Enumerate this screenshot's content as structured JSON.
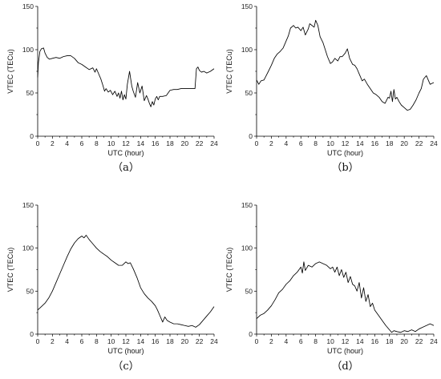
{
  "chart_data": [
    {
      "panel_label": "（a）",
      "type": "line",
      "xlabel": "UTC (hour)",
      "ylabel": "VTEC (TECu)",
      "xlim": [
        0,
        24
      ],
      "ylim": [
        0,
        150
      ],
      "x_ticks": [
        0,
        2,
        4,
        6,
        8,
        10,
        12,
        14,
        16,
        18,
        20,
        22,
        24
      ],
      "y_ticks": [
        0,
        50,
        100,
        150
      ],
      "series": [
        {
          "x": [
            0,
            0.1,
            0.3,
            0.5,
            0.8,
            1.0,
            1.3,
            1.6,
            2.0,
            2.5,
            3.0,
            3.5,
            4.0,
            4.5,
            5.0,
            5.5,
            6.0,
            6.5,
            7.0,
            7.5,
            7.8,
            8.0,
            8.3,
            8.6,
            8.9,
            9.1,
            9.3,
            9.6,
            9.9,
            10.2,
            10.5,
            10.8,
            11.0,
            11.2,
            11.4,
            11.6,
            11.8,
            12.0,
            12.2,
            12.5,
            12.8,
            13.0,
            13.3,
            13.6,
            13.9,
            14.2,
            14.5,
            14.8,
            15.0,
            15.2,
            15.4,
            15.6,
            15.8,
            16.0,
            16.2,
            16.4,
            16.6,
            17.0,
            17.5,
            18.0,
            18.5,
            19.0,
            19.5,
            20.0,
            20.5,
            21.0,
            21.4,
            21.6,
            21.8,
            22.0,
            22.3,
            22.6,
            23.0,
            23.5,
            24.0
          ],
          "y": [
            68,
            85,
            98,
            101,
            102,
            96,
            91,
            89,
            90,
            91,
            90,
            92,
            93,
            93,
            90,
            85,
            83,
            80,
            77,
            79,
            74,
            78,
            72,
            66,
            58,
            52,
            55,
            51,
            53,
            48,
            52,
            46,
            50,
            44,
            52,
            42,
            48,
            43,
            60,
            75,
            58,
            52,
            45,
            62,
            50,
            58,
            41,
            47,
            43,
            38,
            34,
            40,
            36,
            43,
            46,
            42,
            46,
            46,
            47,
            53,
            54,
            54,
            55,
            55,
            55,
            55,
            55,
            78,
            80,
            76,
            74,
            75,
            73,
            75,
            78
          ]
        }
      ]
    },
    {
      "panel_label": "（b）",
      "type": "line",
      "xlabel": "UTC (hour)",
      "ylabel": "VTEC (TECu)",
      "xlim": [
        0,
        24
      ],
      "ylim": [
        0,
        150
      ],
      "x_ticks": [
        0,
        2,
        4,
        6,
        8,
        10,
        12,
        14,
        16,
        18,
        20,
        22,
        24
      ],
      "y_ticks": [
        0,
        50,
        100,
        150
      ],
      "series": [
        {
          "x": [
            0,
            0.3,
            0.6,
            1.0,
            1.3,
            1.6,
            2.0,
            2.4,
            2.8,
            3.2,
            3.6,
            4.0,
            4.3,
            4.6,
            5.0,
            5.3,
            5.6,
            6.0,
            6.3,
            6.6,
            7.0,
            7.2,
            7.5,
            7.8,
            8.0,
            8.3,
            8.6,
            9.0,
            9.3,
            9.6,
            10.0,
            10.3,
            10.6,
            11.0,
            11.3,
            11.6,
            12.0,
            12.3,
            12.6,
            13.0,
            13.3,
            13.6,
            14.0,
            14.3,
            14.6,
            15.0,
            15.4,
            15.8,
            16.2,
            16.6,
            17.0,
            17.4,
            17.8,
            18.0,
            18.2,
            18.4,
            18.6,
            18.8,
            19.0,
            19.3,
            19.6,
            20.0,
            20.4,
            20.8,
            21.2,
            21.6,
            22.0,
            22.3,
            22.6,
            23.0,
            23.5,
            24.0
          ],
          "y": [
            65,
            60,
            64,
            65,
            70,
            75,
            82,
            90,
            95,
            98,
            102,
            110,
            116,
            125,
            128,
            125,
            126,
            122,
            126,
            117,
            124,
            130,
            128,
            126,
            134,
            128,
            115,
            108,
            100,
            92,
            84,
            86,
            90,
            87,
            92,
            92,
            96,
            101,
            90,
            83,
            82,
            78,
            70,
            64,
            66,
            60,
            55,
            50,
            48,
            45,
            40,
            38,
            45,
            44,
            52,
            40,
            54,
            43,
            45,
            40,
            36,
            33,
            30,
            31,
            36,
            42,
            50,
            55,
            66,
            70,
            60,
            62
          ]
        }
      ]
    },
    {
      "panel_label": "（c）",
      "type": "line",
      "xlabel": "UTC (hour)",
      "ylabel": "VTEC (TECu)",
      "xlim": [
        0,
        24
      ],
      "ylim": [
        0,
        150
      ],
      "x_ticks": [
        0,
        2,
        4,
        6,
        8,
        10,
        12,
        14,
        16,
        18,
        20,
        22,
        24
      ],
      "y_ticks": [
        0,
        50,
        100,
        150
      ],
      "series": [
        {
          "x": [
            0,
            0.5,
            1.0,
            1.5,
            2.0,
            2.5,
            3.0,
            3.5,
            4.0,
            4.5,
            5.0,
            5.5,
            6.0,
            6.3,
            6.6,
            7.0,
            7.3,
            7.6,
            8.0,
            8.5,
            9.0,
            9.5,
            10.0,
            10.5,
            11.0,
            11.5,
            12.0,
            12.3,
            12.6,
            13.0,
            13.5,
            14.0,
            14.5,
            15.0,
            15.5,
            16.0,
            16.3,
            16.6,
            17.0,
            17.3,
            17.6,
            18.0,
            18.5,
            19.0,
            19.5,
            20.0,
            20.5,
            21.0,
            21.5,
            22.0,
            22.5,
            23.0,
            23.5,
            24.0
          ],
          "y": [
            28,
            32,
            36,
            42,
            50,
            60,
            70,
            80,
            90,
            99,
            106,
            111,
            114,
            112,
            115,
            110,
            107,
            104,
            100,
            96,
            93,
            90,
            86,
            83,
            80,
            80,
            84,
            82,
            83,
            76,
            66,
            54,
            47,
            42,
            38,
            33,
            28,
            22,
            14,
            20,
            16,
            14,
            12,
            12,
            11,
            10,
            9,
            10,
            8,
            11,
            16,
            21,
            26,
            32
          ]
        }
      ]
    },
    {
      "panel_label": "（d）",
      "type": "line",
      "xlabel": "UTC (hour)",
      "ylabel": "VTEC (TECu)",
      "xlim": [
        0,
        24
      ],
      "ylim": [
        0,
        150
      ],
      "x_ticks": [
        0,
        2,
        4,
        6,
        8,
        10,
        12,
        14,
        16,
        18,
        20,
        22,
        24
      ],
      "y_ticks": [
        0,
        50,
        100,
        150
      ],
      "series": [
        {
          "x": [
            0,
            0.5,
            1.0,
            1.5,
            2.0,
            2.5,
            3.0,
            3.5,
            4.0,
            4.5,
            5.0,
            5.5,
            6.0,
            6.2,
            6.4,
            6.6,
            7.0,
            7.5,
            8.0,
            8.5,
            9.0,
            9.5,
            10.0,
            10.3,
            10.6,
            10.9,
            11.2,
            11.5,
            11.8,
            12.1,
            12.4,
            12.7,
            13.0,
            13.3,
            13.6,
            13.9,
            14.2,
            14.5,
            14.8,
            15.1,
            15.4,
            15.7,
            16.0,
            16.5,
            17.0,
            17.5,
            18.0,
            18.3,
            18.6,
            19.0,
            19.5,
            20.0,
            20.5,
            21.0,
            21.5,
            22.0,
            22.5,
            23.0,
            23.5,
            24.0
          ],
          "y": [
            18,
            22,
            24,
            28,
            33,
            40,
            48,
            52,
            58,
            62,
            68,
            72,
            78,
            71,
            84,
            74,
            80,
            78,
            82,
            84,
            82,
            80,
            76,
            78,
            72,
            78,
            68,
            75,
            66,
            72,
            60,
            67,
            58,
            56,
            50,
            60,
            42,
            54,
            38,
            46,
            32,
            36,
            28,
            22,
            16,
            10,
            5,
            2,
            4,
            3,
            2,
            4,
            3,
            5,
            3,
            6,
            8,
            10,
            12,
            10
          ]
        }
      ]
    }
  ]
}
